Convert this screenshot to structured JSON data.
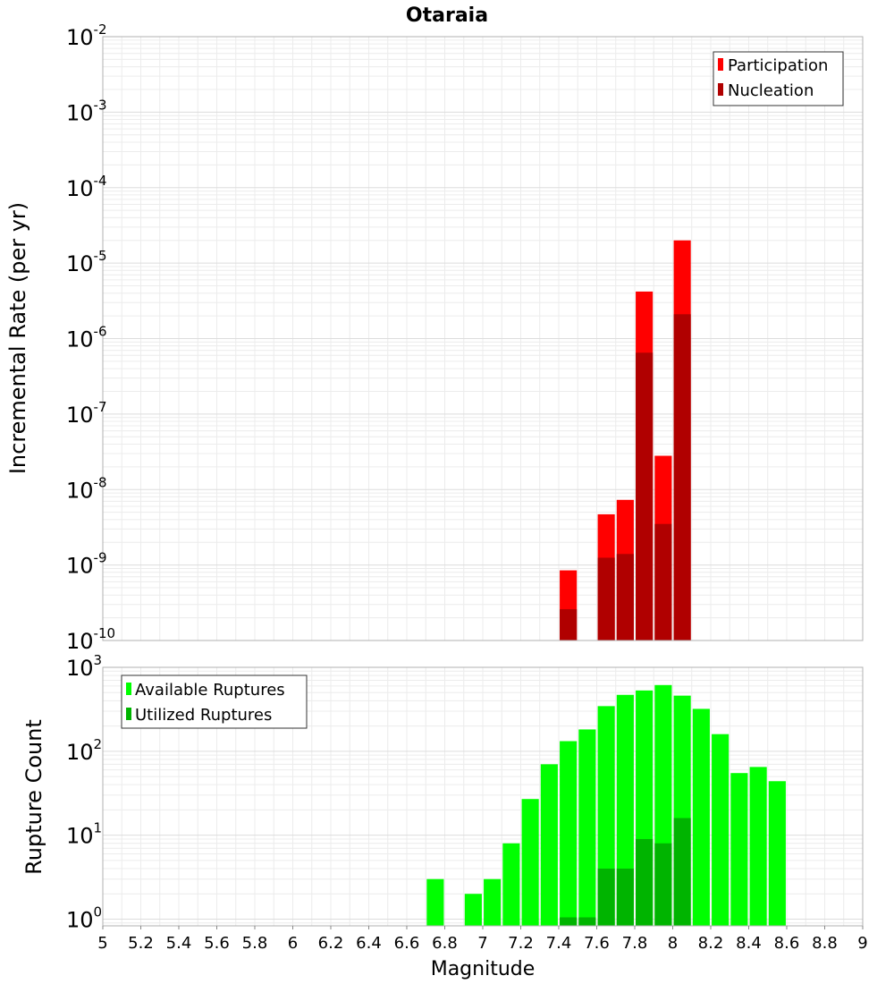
{
  "chart_data": [
    {
      "type": "bar",
      "title": "Otaraia",
      "ylabel": "Incremental Rate (per yr)",
      "xlabel": "",
      "scale": "log",
      "xlim": [
        5,
        9
      ],
      "ylim_exp": [
        -10,
        -2
      ],
      "ytick_base": "10",
      "ytick_exponents": [
        "-10",
        "-9",
        "-8",
        "-7",
        "-6",
        "-5",
        "-4",
        "-3",
        "-2"
      ],
      "bar_width": 0.09,
      "legend_position": "top-right",
      "grid": true,
      "colors": {
        "participation": "#ff0000",
        "nucleation": "#b00000"
      },
      "series": [
        {
          "name": "Participation",
          "x": [
            7.45,
            7.65,
            7.75,
            7.85,
            7.95,
            8.05
          ],
          "values": [
            8.5e-10,
            4.7e-09,
            7.3e-09,
            4.2e-06,
            2.8e-08,
            2e-05
          ]
        },
        {
          "name": "Nucleation",
          "x": [
            7.45,
            7.65,
            7.75,
            7.85,
            7.95,
            8.05
          ],
          "values": [
            2.6e-10,
            1.25e-09,
            1.4e-09,
            6.5e-07,
            3.5e-09,
            2.1e-06
          ]
        }
      ]
    },
    {
      "type": "bar",
      "title": "",
      "ylabel": "Rupture Count",
      "xlabel": "Magnitude",
      "scale": "log",
      "xlim": [
        5,
        9
      ],
      "ylim_exp": [
        -0.08,
        3
      ],
      "ytick_base": "10",
      "ytick_exponents": [
        "0",
        "1",
        "2",
        "3"
      ],
      "xticks": [
        "5",
        "5.2",
        "5.4",
        "5.6",
        "5.8",
        "6",
        "6.2",
        "6.4",
        "6.6",
        "6.8",
        "7",
        "7.2",
        "7.4",
        "7.6",
        "7.8",
        "8",
        "8.2",
        "8.4",
        "8.6",
        "8.8",
        "9"
      ],
      "bar_width": 0.09,
      "legend_position": "top-left",
      "grid": true,
      "colors": {
        "available": "#00ff00",
        "utilized": "#00b400"
      },
      "series": [
        {
          "name": "Available Ruptures",
          "x": [
            6.75,
            6.95,
            7.05,
            7.15,
            7.25,
            7.35,
            7.45,
            7.55,
            7.65,
            7.75,
            7.85,
            7.95,
            8.05,
            8.15,
            8.25,
            8.35,
            8.45,
            8.55
          ],
          "values": [
            3,
            2,
            3,
            8,
            27,
            70,
            132,
            182,
            345,
            470,
            530,
            615,
            460,
            320,
            160,
            55,
            65,
            44
          ]
        },
        {
          "name": "Utilized Ruptures",
          "x": [
            7.45,
            7.55,
            7.65,
            7.75,
            7.85,
            7.95,
            8.05
          ],
          "values": [
            1.05,
            1.05,
            4,
            4,
            9,
            8,
            16
          ]
        }
      ]
    }
  ]
}
